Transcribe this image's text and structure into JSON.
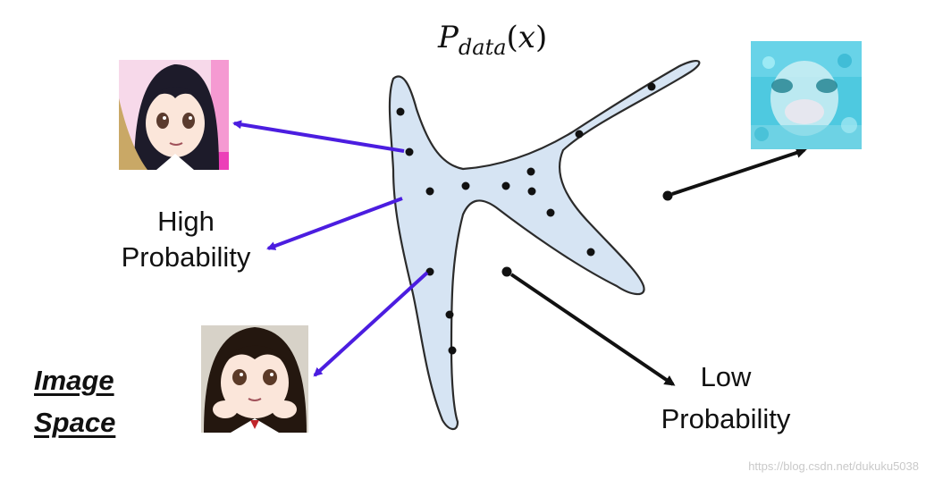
{
  "title": {
    "symbol": "P",
    "subscript": "data",
    "open": "(",
    "var": "x",
    "close": ")"
  },
  "labels": {
    "high_line1": "High",
    "high_line2": "Probability",
    "low_line1": "Low",
    "low_line2": "Probability",
    "space_line1": "Image",
    "space_line2": "Space"
  },
  "watermark": "https://blog.csdn.net/dukuku5038",
  "colors": {
    "distribution_fill": "#d6e4f3",
    "distribution_stroke": "#2b2b2b",
    "high_prob_arrow": "#4b1de0",
    "low_prob_arrow": "#111111",
    "dot": "#111111"
  },
  "images": [
    {
      "name": "anime-character-portrait-1",
      "kind": "clear anime portrait"
    },
    {
      "name": "anime-character-portrait-2",
      "kind": "clear anime portrait"
    },
    {
      "name": "noisy-generated-image",
      "kind": "blurry low-quality sample"
    }
  ]
}
